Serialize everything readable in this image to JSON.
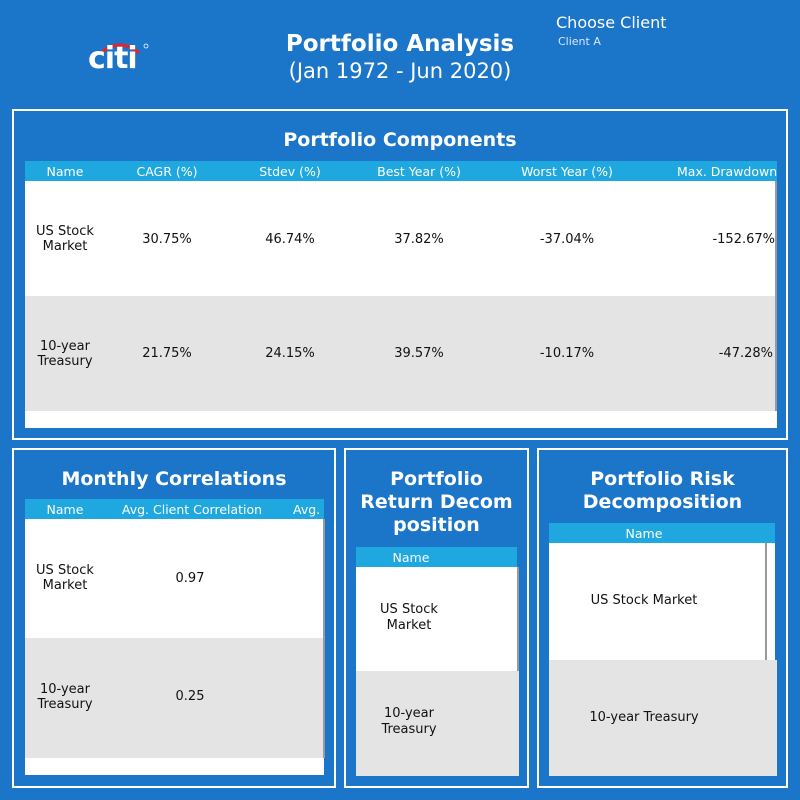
{
  "header": {
    "logo_text": "citi",
    "title": "Portfolio Analysis",
    "subtitle": "(Jan 1972 - Jun 2020)",
    "client_label": "Choose Client",
    "client_value": "Client A"
  },
  "components": {
    "title": "Portfolio Components",
    "columns": [
      "Name",
      "CAGR (%)",
      "Stdev (%)",
      "Best Year (%)",
      "Worst Year (%)",
      "Max. Drawdown"
    ],
    "rows": [
      {
        "name": "US Stock Market",
        "cagr": "30.75%",
        "stdev": "46.74%",
        "best": "37.82%",
        "worst": "-37.04%",
        "drawdown": "-152.67%"
      },
      {
        "name": "10-year Treasury",
        "cagr": "21.75%",
        "stdev": "24.15%",
        "best": "39.57%",
        "worst": "-10.17%",
        "drawdown": "-47.28%"
      }
    ]
  },
  "correlations": {
    "title": "Monthly Correlations",
    "columns": [
      "Name",
      "Avg. Client Correlation",
      "Avg."
    ],
    "rows": [
      {
        "name": "US Stock Market",
        "value": "0.97"
      },
      {
        "name": "10-year Treasury",
        "value": "0.25"
      }
    ]
  },
  "return_decomp": {
    "title": "Portfolio Return Decom position",
    "columns": [
      "Name"
    ],
    "rows": [
      {
        "name": "US Stock Market"
      },
      {
        "name": "10-year Treasury"
      }
    ]
  },
  "risk_decomp": {
    "title": "Portfolio Risk Decomposition",
    "columns": [
      "Name"
    ],
    "rows": [
      {
        "name": "US Stock Market"
      },
      {
        "name": "10-year Treasury"
      }
    ]
  },
  "colors": {
    "background": "#1b75c8",
    "header_row": "#1fa8e0",
    "row_alt": "#e4e4e4",
    "logo_arc": "#e0262b"
  }
}
